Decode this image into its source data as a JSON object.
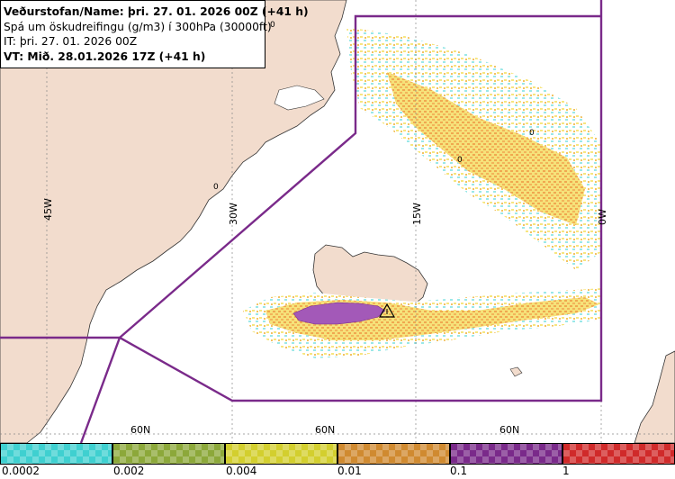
{
  "header": {
    "line1": "Veðurstofan/Name: þri. 27. 01. 2026 00Z (+41 h)",
    "line2": "Spá um öskudreifingu (g/m3) í 300hPa (30000ft)",
    "line3": "IT: þri. 27. 01. 2026 00Z",
    "line4": "VT: Mið. 28.01.2026 17Z (+41 h)"
  },
  "map": {
    "meridian_labels": [
      {
        "text": "45W"
      },
      {
        "text": "30W"
      },
      {
        "text": "15W"
      },
      {
        "text": "0W"
      }
    ],
    "parallel_labels": [
      {
        "text": "60N"
      },
      {
        "text": "60N"
      },
      {
        "text": "60N"
      }
    ],
    "contour_labels": [
      "0",
      "0",
      "0",
      "0"
    ],
    "volcano_marker": "volcano-triangle-icon"
  },
  "legend": {
    "colors": [
      "#3fd0d0",
      "#8ca83a",
      "#d3cf2e",
      "#d08a30",
      "#7a2a8a",
      "#d02a2a"
    ],
    "labels": [
      "0.0002",
      "0.002",
      "0.004",
      "0.01",
      "0.1",
      "1"
    ]
  }
}
